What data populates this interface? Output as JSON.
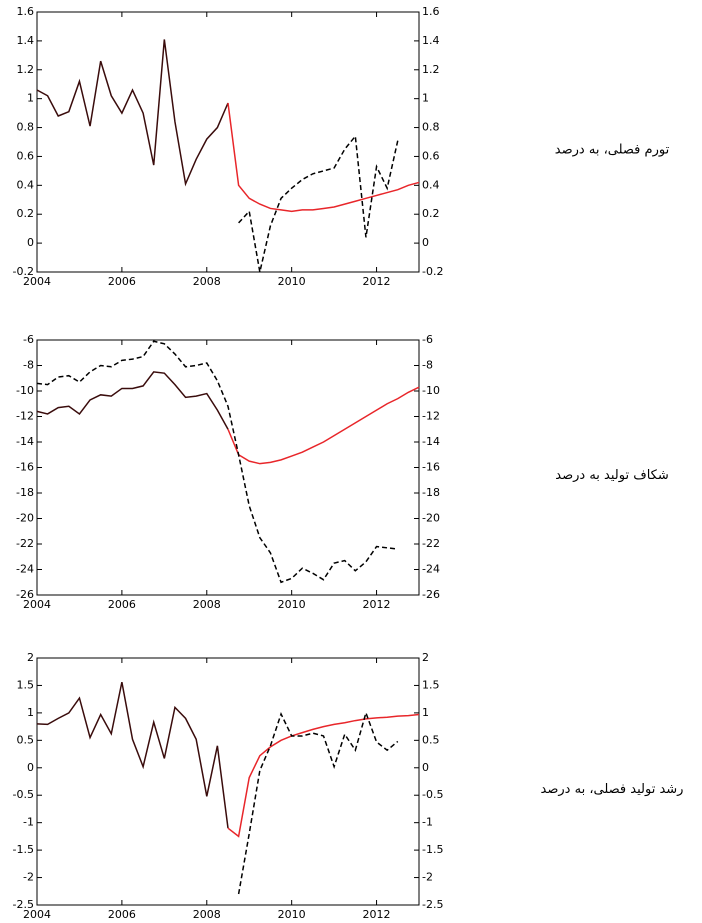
{
  "chart_data": [
    {
      "type": "line",
      "ylabel": "تورم فصلی، به درصد",
      "xlim": [
        2004,
        2013
      ],
      "xticks": [
        2004,
        2006,
        2008,
        2010,
        2012
      ],
      "ylim": [
        -0.2,
        1.6
      ],
      "yticks": [
        -0.2,
        0,
        0.2,
        0.4,
        0.6,
        0.8,
        1,
        1.2,
        1.4,
        1.6
      ],
      "series": [
        {
          "color": "#3a0c0c",
          "dash": false,
          "x": [
            2004,
            2004.25,
            2004.5,
            2004.75,
            2005,
            2005.25,
            2005.5,
            2005.75,
            2006,
            2006.25,
            2006.5,
            2006.75,
            2007,
            2007.25,
            2007.5,
            2007.75,
            2008,
            2008.25,
            2008.5
          ],
          "values": [
            1.06,
            1.02,
            0.88,
            0.91,
            1.12,
            0.81,
            1.26,
            1.02,
            0.9,
            1.06,
            0.9,
            0.54,
            1.41,
            0.84,
            0.41,
            0.58,
            0.72,
            0.8,
            0.97
          ]
        },
        {
          "color": "#e8262a",
          "dash": false,
          "x": [
            2008.5,
            2008.75,
            2009,
            2009.25,
            2009.5,
            2009.75,
            2010,
            2010.25,
            2010.5,
            2010.75,
            2011,
            2011.25,
            2011.5,
            2011.75,
            2012,
            2012.25,
            2012.5,
            2012.75,
            2013
          ],
          "values": [
            0.97,
            0.4,
            0.31,
            0.27,
            0.24,
            0.23,
            0.22,
            0.23,
            0.23,
            0.24,
            0.25,
            0.27,
            0.29,
            0.31,
            0.33,
            0.35,
            0.37,
            0.4,
            0.42
          ]
        },
        {
          "color": "#000000",
          "dash": true,
          "x": [
            2008.75,
            2009,
            2009.25,
            2009.5,
            2009.75,
            2010,
            2010.25,
            2010.5,
            2010.75,
            2011,
            2011.25,
            2011.5,
            2011.75,
            2012,
            2012.25,
            2012.5
          ],
          "values": [
            0.14,
            0.22,
            -0.2,
            0.12,
            0.31,
            0.38,
            0.44,
            0.48,
            0.5,
            0.52,
            0.65,
            0.74,
            0.04,
            0.53,
            0.38,
            0.71
          ]
        }
      ]
    },
    {
      "type": "line",
      "ylabel": "شکاف تولید به درصد",
      "xlim": [
        2004,
        2013
      ],
      "xticks": [
        2004,
        2006,
        2008,
        2010,
        2012
      ],
      "ylim": [
        -26,
        -6
      ],
      "yticks": [
        -26,
        -24,
        -22,
        -20,
        -18,
        -16,
        -14,
        -12,
        -10,
        -8,
        -6
      ],
      "series": [
        {
          "color": "#3a0c0c",
          "dash": false,
          "x": [
            2004,
            2004.25,
            2004.5,
            2004.75,
            2005,
            2005.25,
            2005.5,
            2005.75,
            2006,
            2006.25,
            2006.5,
            2006.75,
            2007,
            2007.25,
            2007.5,
            2007.75,
            2008,
            2008.25,
            2008.5
          ],
          "values": [
            -11.6,
            -11.8,
            -11.3,
            -11.2,
            -11.8,
            -10.7,
            -10.3,
            -10.4,
            -9.8,
            -9.8,
            -9.6,
            -8.5,
            -8.6,
            -9.5,
            -10.5,
            -10.4,
            -10.2,
            -11.5,
            -13.0
          ]
        },
        {
          "color": "#e8262a",
          "dash": false,
          "x": [
            2008.5,
            2008.75,
            2009,
            2009.25,
            2009.5,
            2009.75,
            2010,
            2010.25,
            2010.5,
            2010.75,
            2011,
            2011.25,
            2011.5,
            2011.75,
            2012,
            2012.25,
            2012.5,
            2012.75,
            2013
          ],
          "values": [
            -13.0,
            -15.0,
            -15.5,
            -15.7,
            -15.6,
            -15.4,
            -15.1,
            -14.8,
            -14.4,
            -14.0,
            -13.5,
            -13.0,
            -12.5,
            -12.0,
            -11.5,
            -11.0,
            -10.6,
            -10.1,
            -9.7
          ]
        },
        {
          "color": "#000000",
          "dash": true,
          "x": [
            2004,
            2004.25,
            2004.5,
            2004.75,
            2005,
            2005.25,
            2005.5,
            2005.75,
            2006,
            2006.25,
            2006.5,
            2006.75,
            2007,
            2007.25,
            2007.5,
            2007.75,
            2008,
            2008.25,
            2008.5,
            2008.75,
            2009,
            2009.25,
            2009.5,
            2009.75,
            2010,
            2010.25,
            2010.5,
            2010.75,
            2011,
            2011.25,
            2011.5,
            2011.75,
            2012,
            2012.25,
            2012.5
          ],
          "values": [
            -9.4,
            -9.5,
            -8.9,
            -8.8,
            -9.3,
            -8.5,
            -8.0,
            -8.1,
            -7.6,
            -7.5,
            -7.3,
            -6.1,
            -6.3,
            -7.1,
            -8.1,
            -8.0,
            -7.8,
            -9.2,
            -11.2,
            -15.0,
            -19.0,
            -21.5,
            -22.7,
            -25.0,
            -24.7,
            -23.9,
            -24.3,
            -24.8,
            -23.5,
            -23.3,
            -24.1,
            -23.4,
            -22.2,
            -22.3,
            -22.4
          ]
        }
      ]
    },
    {
      "type": "line",
      "ylabel": "رشد تولید فصلی، به درصد",
      "xlim": [
        2004,
        2013
      ],
      "xticks": [
        2004,
        2006,
        2008,
        2010,
        2012
      ],
      "ylim": [
        -2.5,
        2
      ],
      "yticks": [
        -2.5,
        -2,
        -1.5,
        -1,
        -0.5,
        0,
        0.5,
        1,
        1.5,
        2
      ],
      "series": [
        {
          "color": "#3a0c0c",
          "dash": false,
          "x": [
            2004,
            2004.25,
            2004.5,
            2004.75,
            2005,
            2005.25,
            2005.5,
            2005.75,
            2006,
            2006.25,
            2006.5,
            2006.75,
            2007,
            2007.25,
            2007.5,
            2007.75,
            2008,
            2008.25,
            2008.5
          ],
          "values": [
            0.8,
            0.79,
            0.9,
            1.0,
            1.27,
            0.55,
            0.97,
            0.62,
            1.56,
            0.52,
            0.02,
            0.83,
            0.17,
            1.1,
            0.9,
            0.52,
            -0.52,
            0.4,
            -1.1
          ]
        },
        {
          "color": "#e8262a",
          "dash": false,
          "x": [
            2008.5,
            2008.75,
            2009,
            2009.25,
            2009.5,
            2009.75,
            2010,
            2010.25,
            2010.5,
            2010.75,
            2011,
            2011.25,
            2011.5,
            2011.75,
            2012,
            2012.25,
            2012.5,
            2012.75,
            2013
          ],
          "values": [
            -1.1,
            -1.25,
            -0.18,
            0.22,
            0.38,
            0.5,
            0.58,
            0.64,
            0.7,
            0.75,
            0.79,
            0.82,
            0.86,
            0.89,
            0.91,
            0.92,
            0.94,
            0.95,
            0.97
          ]
        },
        {
          "color": "#000000",
          "dash": true,
          "x": [
            2008.75,
            2009,
            2009.25,
            2009.5,
            2009.75,
            2010,
            2010.25,
            2010.5,
            2010.75,
            2011,
            2011.25,
            2011.5,
            2011.75,
            2012,
            2012.25,
            2012.5
          ],
          "values": [
            -2.3,
            -1.2,
            -0.05,
            0.4,
            0.98,
            0.58,
            0.58,
            0.63,
            0.58,
            0.02,
            0.61,
            0.32,
            1.0,
            0.47,
            0.32,
            0.48
          ]
        }
      ]
    }
  ]
}
